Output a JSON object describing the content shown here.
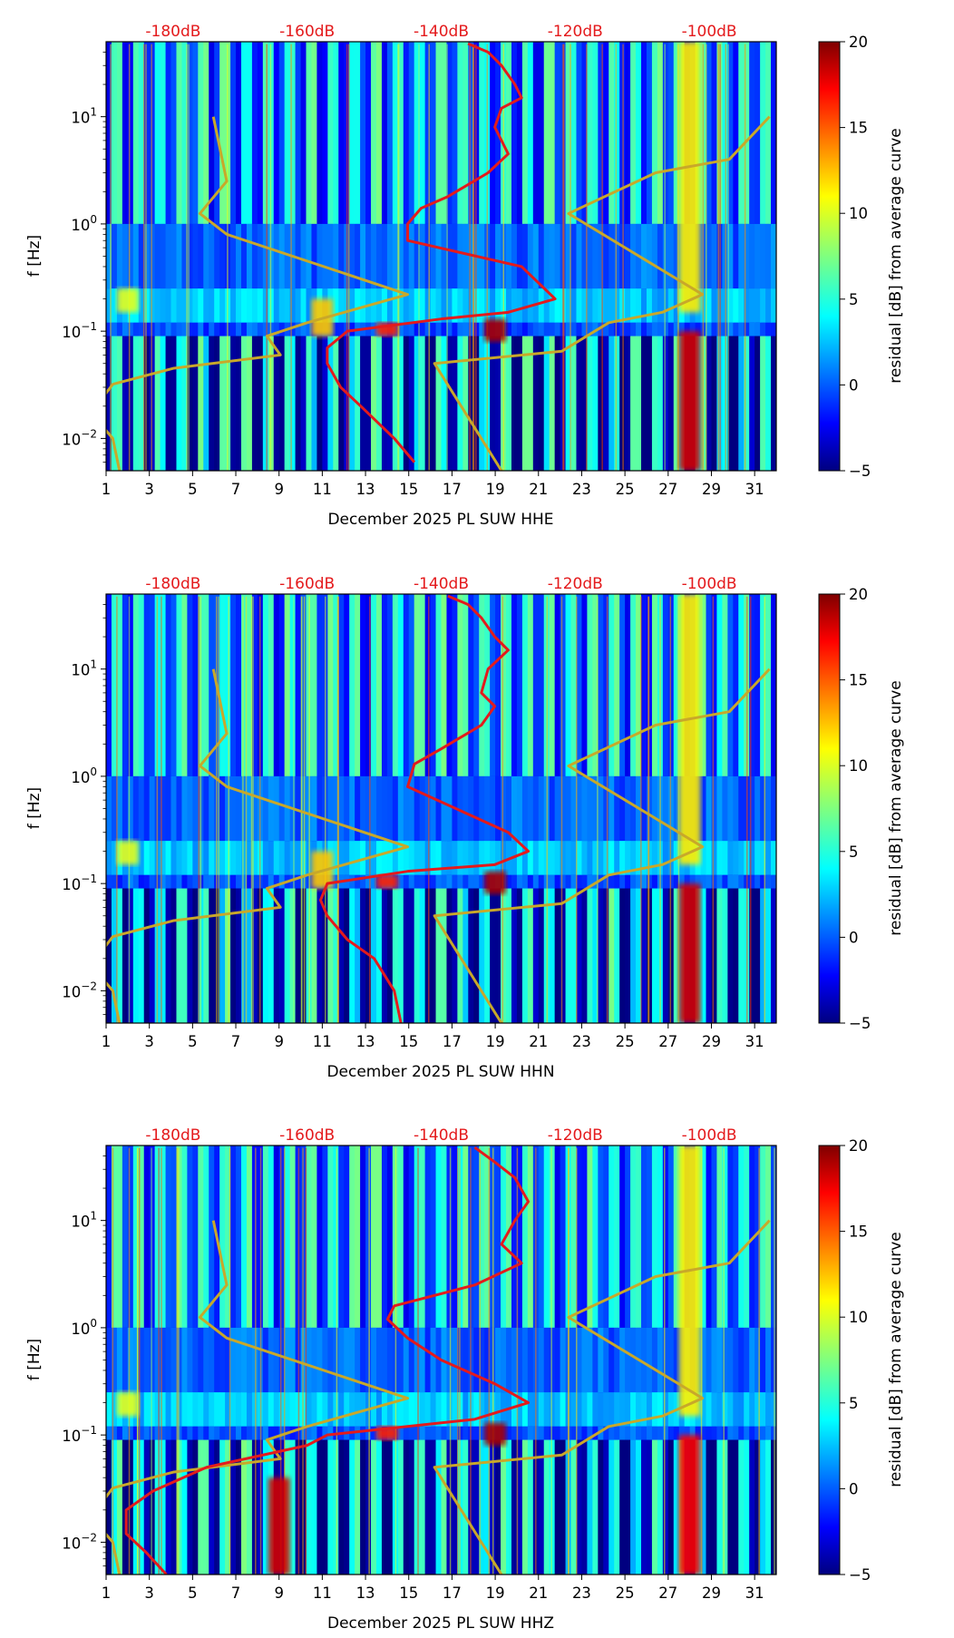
{
  "chart_data": [
    {
      "type": "heatmap",
      "title": "",
      "xlabel": "December 2025 PL SUW  HHE",
      "ylabel": "f [Hz]",
      "x_range": [
        1,
        32
      ],
      "x_ticks": [
        1,
        3,
        5,
        7,
        9,
        11,
        13,
        15,
        17,
        19,
        21,
        23,
        25,
        27,
        29,
        31
      ],
      "y_scale": "log",
      "y_range_hz": [
        0.005,
        50
      ],
      "y_ticks": [
        {
          "value": 0.01,
          "base": "10",
          "exp": "−2"
        },
        {
          "value": 0.1,
          "base": "10",
          "exp": "−1"
        },
        {
          "value": 1,
          "base": "10",
          "exp": "0"
        },
        {
          "value": 10,
          "base": "10",
          "exp": "1"
        }
      ],
      "db_axis_labels": [
        "-180dB",
        "-160dB",
        "-140dB",
        "-120dB",
        "-100dB"
      ],
      "db_axis_range": [
        -190,
        -90
      ],
      "colorbar": {
        "label": "residual [dB] from average curve",
        "min": -5,
        "max": 20,
        "ticks": [
          "−5",
          "0",
          "5",
          "10",
          "15",
          "20"
        ],
        "colormap": "jet"
      },
      "reference_curves": {
        "color": "#c8a82a",
        "low_noise": [
          [
            -174,
            10
          ],
          [
            -172,
            2.5
          ],
          [
            -176,
            1.25
          ],
          [
            -172,
            0.8
          ],
          [
            -145,
            0.22
          ],
          [
            -160,
            0.12
          ],
          [
            -166,
            0.09
          ],
          [
            -164,
            0.06
          ],
          [
            -180,
            0.045
          ],
          [
            -189,
            0.032
          ],
          [
            -191,
            0.022
          ],
          [
            -191,
            0.014
          ],
          [
            -189,
            0.01
          ],
          [
            -188,
            0.005
          ]
        ],
        "high_noise": [
          [
            -91,
            10
          ],
          [
            -97,
            4
          ],
          [
            -108,
            3
          ],
          [
            -121,
            1.25
          ],
          [
            -101,
            0.22
          ],
          [
            -107,
            0.15
          ],
          [
            -115,
            0.12
          ],
          [
            -122,
            0.065
          ],
          [
            -141,
            0.05
          ],
          [
            -131,
            0.005
          ]
        ]
      },
      "psd_curve": {
        "color": "#e41a1c",
        "points": [
          [
            -136,
            48
          ],
          [
            -133,
            40
          ],
          [
            -131,
            30
          ],
          [
            -129,
            20
          ],
          [
            -128,
            15
          ],
          [
            -131,
            12
          ],
          [
            -132,
            8
          ],
          [
            -131,
            6
          ],
          [
            -130,
            4.5
          ],
          [
            -133,
            3
          ],
          [
            -139,
            1.8
          ],
          [
            -143,
            1.4
          ],
          [
            -145,
            1.0
          ],
          [
            -145,
            0.7
          ],
          [
            -128,
            0.4
          ],
          [
            -123,
            0.2
          ],
          [
            -130,
            0.15
          ],
          [
            -140,
            0.13
          ],
          [
            -154,
            0.1
          ],
          [
            -157,
            0.07
          ],
          [
            -157,
            0.05
          ],
          [
            -155,
            0.03
          ],
          [
            -152,
            0.02
          ],
          [
            -147,
            0.01
          ],
          [
            -144,
            0.006
          ]
        ]
      },
      "events": [
        {
          "day": 28,
          "f_low": 0.005,
          "f_high": 0.1,
          "level": 18
        },
        {
          "day": 28,
          "f_low": 0.15,
          "f_high": 50,
          "level": 11
        },
        {
          "day": 19,
          "f_low": 0.08,
          "f_high": 0.13,
          "level": 19
        },
        {
          "day": 14,
          "f_low": 0.09,
          "f_high": 0.12,
          "level": 16
        },
        {
          "day": 11,
          "f_low": 0.09,
          "f_high": 0.2,
          "level": 12
        },
        {
          "day": 2,
          "f_low": 0.15,
          "f_high": 0.25,
          "level": 10
        }
      ]
    },
    {
      "type": "heatmap",
      "title": "",
      "xlabel": "December 2025 PL SUW  HHN",
      "ylabel": "f [Hz]",
      "x_range": [
        1,
        32
      ],
      "x_ticks": [
        1,
        3,
        5,
        7,
        9,
        11,
        13,
        15,
        17,
        19,
        21,
        23,
        25,
        27,
        29,
        31
      ],
      "y_scale": "log",
      "y_range_hz": [
        0.005,
        50
      ],
      "y_ticks": [
        {
          "value": 0.01,
          "base": "10",
          "exp": "−2"
        },
        {
          "value": 0.1,
          "base": "10",
          "exp": "−1"
        },
        {
          "value": 1,
          "base": "10",
          "exp": "0"
        },
        {
          "value": 10,
          "base": "10",
          "exp": "1"
        }
      ],
      "db_axis_labels": [
        "-180dB",
        "-160dB",
        "-140dB",
        "-120dB",
        "-100dB"
      ],
      "db_axis_range": [
        -190,
        -90
      ],
      "colorbar": {
        "label": "residual [dB] from average curve",
        "min": -5,
        "max": 20,
        "ticks": [
          "−5",
          "0",
          "5",
          "10",
          "15",
          "20"
        ],
        "colormap": "jet"
      },
      "reference_curves": {
        "color": "#c8a82a",
        "low_noise": [
          [
            -174,
            10
          ],
          [
            -172,
            2.5
          ],
          [
            -176,
            1.25
          ],
          [
            -172,
            0.8
          ],
          [
            -145,
            0.22
          ],
          [
            -160,
            0.12
          ],
          [
            -166,
            0.09
          ],
          [
            -164,
            0.06
          ],
          [
            -180,
            0.045
          ],
          [
            -189,
            0.032
          ],
          [
            -191,
            0.022
          ],
          [
            -191,
            0.014
          ],
          [
            -189,
            0.01
          ],
          [
            -188,
            0.005
          ]
        ],
        "high_noise": [
          [
            -91,
            10
          ],
          [
            -97,
            4
          ],
          [
            -108,
            3
          ],
          [
            -121,
            1.25
          ],
          [
            -101,
            0.22
          ],
          [
            -107,
            0.15
          ],
          [
            -115,
            0.12
          ],
          [
            -122,
            0.065
          ],
          [
            -141,
            0.05
          ],
          [
            -131,
            0.005
          ]
        ]
      },
      "psd_curve": {
        "color": "#e41a1c",
        "points": [
          [
            -139,
            48
          ],
          [
            -136,
            40
          ],
          [
            -134,
            30
          ],
          [
            -132,
            20
          ],
          [
            -130,
            15
          ],
          [
            -133,
            10
          ],
          [
            -134,
            6
          ],
          [
            -132,
            4.5
          ],
          [
            -134,
            3
          ],
          [
            -140,
            1.8
          ],
          [
            -144,
            1.3
          ],
          [
            -145,
            0.8
          ],
          [
            -130,
            0.3
          ],
          [
            -127,
            0.2
          ],
          [
            -132,
            0.15
          ],
          [
            -145,
            0.13
          ],
          [
            -157,
            0.1
          ],
          [
            -158,
            0.07
          ],
          [
            -157,
            0.05
          ],
          [
            -154,
            0.03
          ],
          [
            -150,
            0.02
          ],
          [
            -147,
            0.01
          ],
          [
            -146,
            0.005
          ]
        ]
      },
      "events": [
        {
          "day": 28,
          "f_low": 0.005,
          "f_high": 0.1,
          "level": 18
        },
        {
          "day": 28,
          "f_low": 0.15,
          "f_high": 50,
          "level": 11
        },
        {
          "day": 19,
          "f_low": 0.08,
          "f_high": 0.13,
          "level": 19
        },
        {
          "day": 14,
          "f_low": 0.09,
          "f_high": 0.12,
          "level": 16
        },
        {
          "day": 11,
          "f_low": 0.09,
          "f_high": 0.2,
          "level": 12
        },
        {
          "day": 2,
          "f_low": 0.15,
          "f_high": 0.25,
          "level": 10
        }
      ]
    },
    {
      "type": "heatmap",
      "title": "",
      "xlabel": "December 2025 PL SUW  HHZ",
      "ylabel": "f [Hz]",
      "x_range": [
        1,
        32
      ],
      "x_ticks": [
        1,
        3,
        5,
        7,
        9,
        11,
        13,
        15,
        17,
        19,
        21,
        23,
        25,
        27,
        29,
        31
      ],
      "y_scale": "log",
      "y_range_hz": [
        0.005,
        50
      ],
      "y_ticks": [
        {
          "value": 0.01,
          "base": "10",
          "exp": "−2"
        },
        {
          "value": 0.1,
          "base": "10",
          "exp": "−1"
        },
        {
          "value": 1,
          "base": "10",
          "exp": "0"
        },
        {
          "value": 10,
          "base": "10",
          "exp": "1"
        }
      ],
      "db_axis_labels": [
        "-180dB",
        "-160dB",
        "-140dB",
        "-120dB",
        "-100dB"
      ],
      "db_axis_range": [
        -190,
        -90
      ],
      "colorbar": {
        "label": "residual [dB] from average curve",
        "min": -5,
        "max": 20,
        "ticks": [
          "−5",
          "0",
          "5",
          "10",
          "15",
          "20"
        ],
        "colormap": "jet"
      },
      "reference_curves": {
        "color": "#c8a82a",
        "low_noise": [
          [
            -174,
            10
          ],
          [
            -172,
            2.5
          ],
          [
            -176,
            1.25
          ],
          [
            -172,
            0.8
          ],
          [
            -145,
            0.22
          ],
          [
            -160,
            0.12
          ],
          [
            -166,
            0.09
          ],
          [
            -164,
            0.06
          ],
          [
            -180,
            0.045
          ],
          [
            -189,
            0.032
          ],
          [
            -191,
            0.022
          ],
          [
            -191,
            0.014
          ],
          [
            -189,
            0.01
          ],
          [
            -188,
            0.005
          ]
        ],
        "high_noise": [
          [
            -91,
            10
          ],
          [
            -97,
            4
          ],
          [
            -108,
            3
          ],
          [
            -121,
            1.25
          ],
          [
            -101,
            0.22
          ],
          [
            -107,
            0.15
          ],
          [
            -115,
            0.12
          ],
          [
            -122,
            0.065
          ],
          [
            -141,
            0.05
          ],
          [
            -131,
            0.005
          ]
        ]
      },
      "psd_curve": {
        "color": "#e41a1c",
        "points": [
          [
            -135,
            48
          ],
          [
            -132,
            35
          ],
          [
            -129,
            25
          ],
          [
            -127,
            15
          ],
          [
            -129,
            10
          ],
          [
            -131,
            6
          ],
          [
            -128,
            4
          ],
          [
            -135,
            2.5
          ],
          [
            -147,
            1.6
          ],
          [
            -148,
            1.2
          ],
          [
            -145,
            0.8
          ],
          [
            -140,
            0.5
          ],
          [
            -132,
            0.3
          ],
          [
            -127,
            0.2
          ],
          [
            -135,
            0.14
          ],
          [
            -157,
            0.1
          ],
          [
            -160,
            0.08
          ],
          [
            -175,
            0.05
          ],
          [
            -183,
            0.03
          ],
          [
            -187,
            0.02
          ],
          [
            -187,
            0.012
          ],
          [
            -184,
            0.008
          ],
          [
            -181,
            0.005
          ]
        ]
      },
      "events": [
        {
          "day": 28,
          "f_low": 0.005,
          "f_high": 0.1,
          "level": 17
        },
        {
          "day": 28,
          "f_low": 0.15,
          "f_high": 50,
          "level": 11
        },
        {
          "day": 19,
          "f_low": 0.08,
          "f_high": 0.13,
          "level": 19
        },
        {
          "day": 14,
          "f_low": 0.09,
          "f_high": 0.12,
          "level": 16
        },
        {
          "day": 9,
          "f_low": 0.005,
          "f_high": 0.04,
          "level": 18
        },
        {
          "day": 2,
          "f_low": 0.15,
          "f_high": 0.25,
          "level": 10
        }
      ]
    }
  ]
}
